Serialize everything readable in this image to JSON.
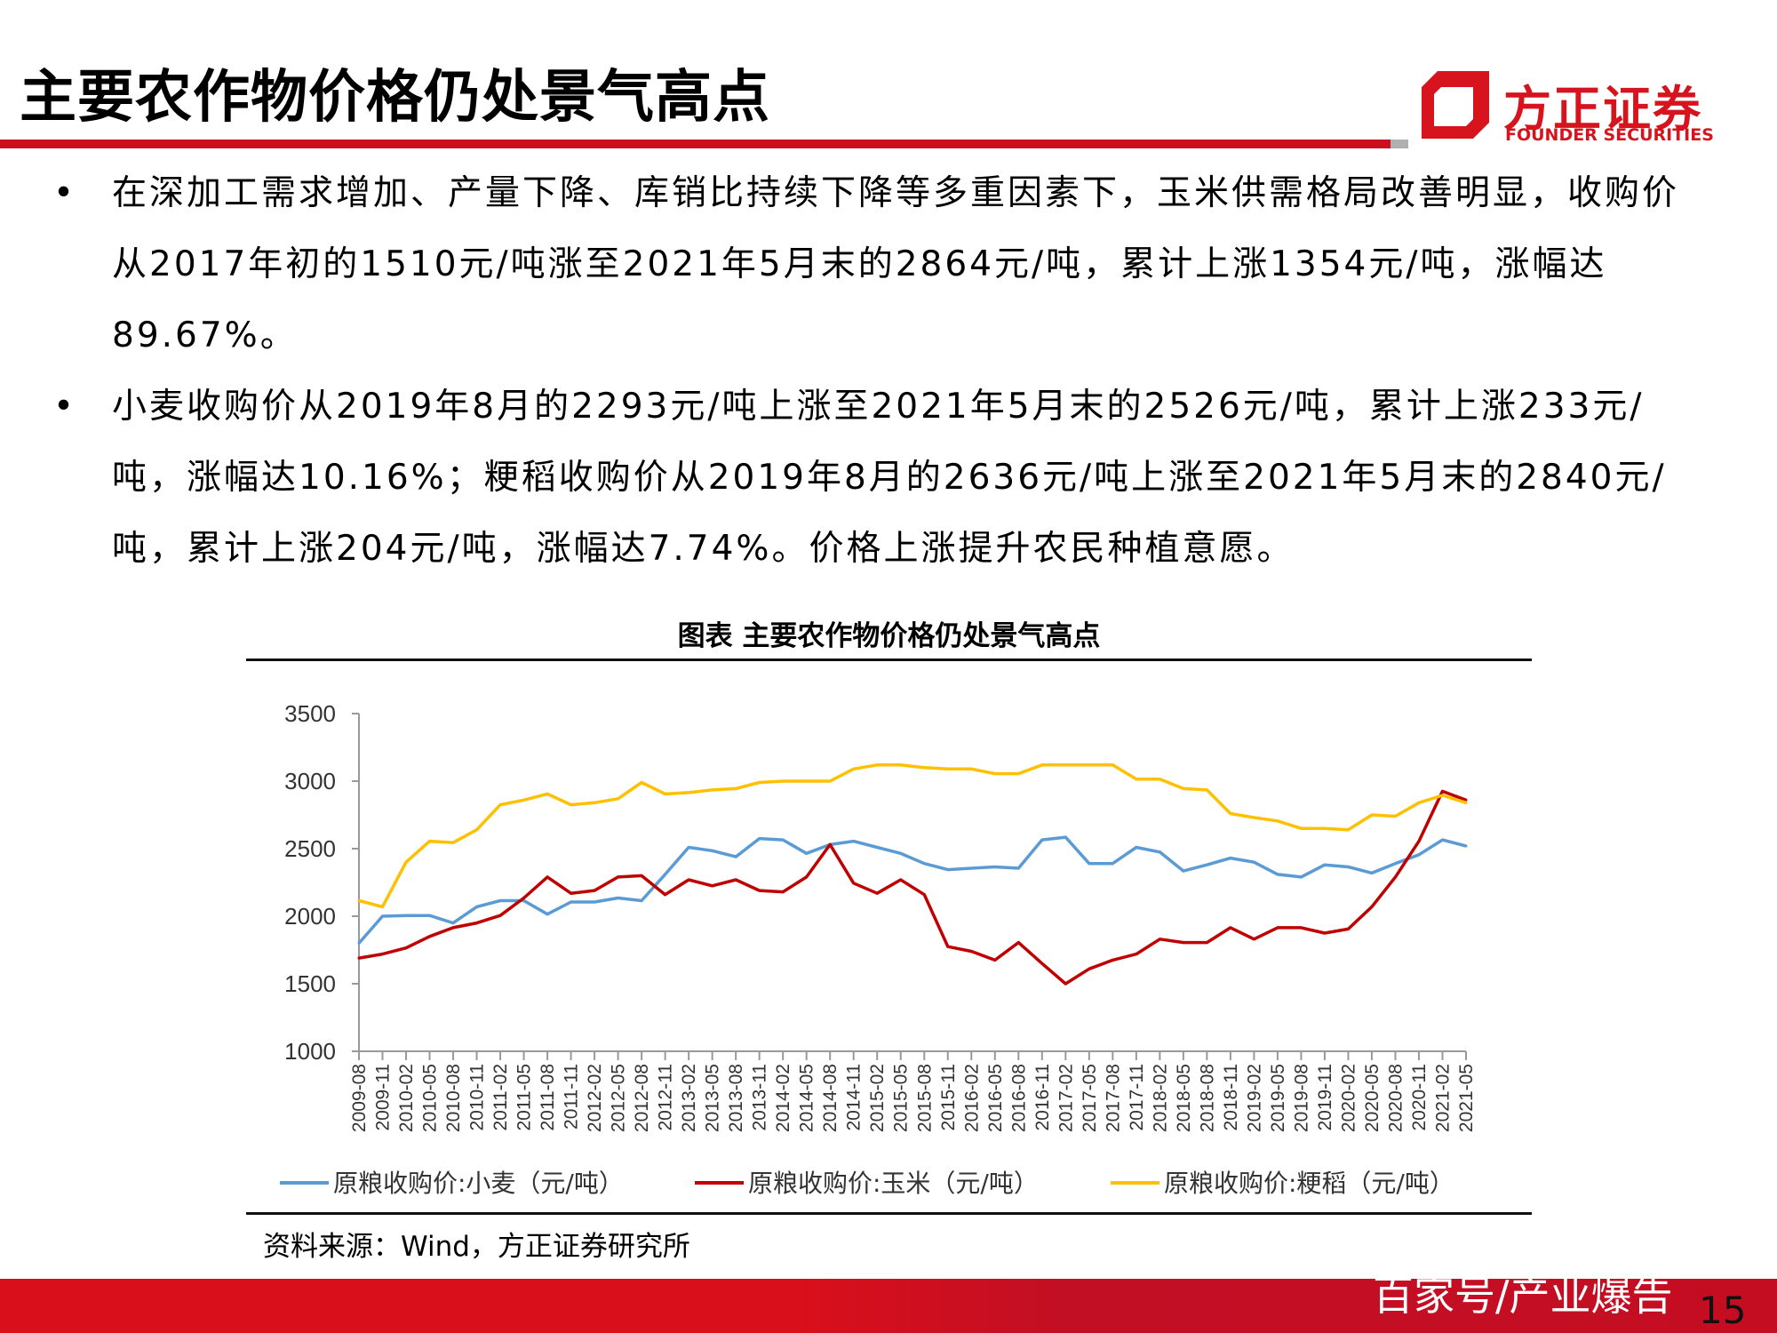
{
  "header": {
    "title": "主要农作物价格仍处景气高点",
    "logo_cn": "方正证券",
    "logo_en": "FOUNDER SECURITIES",
    "brand_color": "#d7141e"
  },
  "bullets": [
    "在深加工需求增加、产量下降、库销比持续下降等多重因素下，玉米供需格局改善明显，收购价从2017年初的1510元/吨涨至2021年5月末的2864元/吨，累计上涨1354元/吨，涨幅达89.67%。",
    "小麦收购价从2019年8月的2293元/吨上涨至2021年5月末的2526元/吨，累计上涨233元/吨，涨幅达10.16%；粳稻收购价从2019年8月的2636元/吨上涨至2021年5月末的2840元/吨，累计上涨204元/吨，涨幅达7.74%。价格上涨提升农民种植意愿。"
  ],
  "bullet_symbol": "•",
  "chart_data": {
    "type": "line",
    "title": "图表 主要农作物价格仍处景气高点",
    "xlabel": "",
    "ylabel": "",
    "ylim": [
      1000,
      3500
    ],
    "yticks": [
      "3500",
      "3000",
      "2500",
      "2000",
      "1500",
      "1000"
    ],
    "grid": false,
    "legend_position": "bottom",
    "categories": [
      "2009-08",
      "2009-11",
      "2010-02",
      "2010-05",
      "2010-08",
      "2010-11",
      "2011-02",
      "2011-05",
      "2011-08",
      "2011-11",
      "2012-02",
      "2012-05",
      "2012-08",
      "2012-11",
      "2013-02",
      "2013-05",
      "2013-08",
      "2013-11",
      "2014-02",
      "2014-05",
      "2014-08",
      "2014-11",
      "2015-02",
      "2015-05",
      "2015-08",
      "2015-11",
      "2016-02",
      "2016-05",
      "2016-08",
      "2016-11",
      "2017-02",
      "2017-05",
      "2017-08",
      "2017-11",
      "2018-02",
      "2018-05",
      "2018-08",
      "2018-11",
      "2019-02",
      "2019-05",
      "2019-08",
      "2019-11",
      "2020-02",
      "2020-05",
      "2020-08",
      "2020-11",
      "2021-02",
      "2021-05"
    ],
    "series": [
      {
        "name": "原粮收购价:小麦（元/吨）",
        "color": "#5b9bd5",
        "values": [
          1800,
          2000,
          2005,
          2005,
          1950,
          2070,
          2115,
          2115,
          2015,
          2105,
          2105,
          2135,
          2115,
          2310,
          2510,
          2485,
          2440,
          2575,
          2565,
          2465,
          2530,
          2555,
          2510,
          2465,
          2390,
          2345,
          2355,
          2365,
          2355,
          2565,
          2585,
          2390,
          2390,
          2510,
          2475,
          2335,
          2380,
          2430,
          2400,
          2310,
          2290,
          2380,
          2365,
          2320,
          2390,
          2455,
          2565,
          2520
        ]
      },
      {
        "name": "原粮收购价:玉米（元/吨）",
        "color": "#c00000",
        "values": [
          1690,
          1720,
          1765,
          1850,
          1915,
          1950,
          2005,
          2135,
          2290,
          2170,
          2190,
          2290,
          2300,
          2160,
          2270,
          2225,
          2270,
          2190,
          2180,
          2290,
          2530,
          2245,
          2170,
          2270,
          2160,
          1775,
          1740,
          1675,
          1805,
          1650,
          1500,
          1610,
          1675,
          1720,
          1830,
          1805,
          1805,
          1915,
          1830,
          1915,
          1915,
          1875,
          1905,
          2070,
          2290,
          2555,
          2925,
          2860
        ]
      },
      {
        "name": "原粮收购价:粳稻（元/吨）",
        "color": "#ffc000",
        "values": [
          2115,
          2070,
          2400,
          2555,
          2545,
          2640,
          2825,
          2860,
          2905,
          2825,
          2840,
          2870,
          2990,
          2905,
          2915,
          2935,
          2945,
          2990,
          3000,
          3000,
          3000,
          3090,
          3120,
          3120,
          3100,
          3090,
          3090,
          3055,
          3055,
          3120,
          3120,
          3120,
          3120,
          3015,
          3015,
          2945,
          2935,
          2760,
          2730,
          2705,
          2650,
          2650,
          2640,
          2750,
          2740,
          2840,
          2895,
          2840
        ]
      }
    ]
  },
  "source": "资料来源：Wind，方正证券研究所",
  "footer": {
    "watermark": "百家号/产业爆告",
    "page_number": "15"
  }
}
